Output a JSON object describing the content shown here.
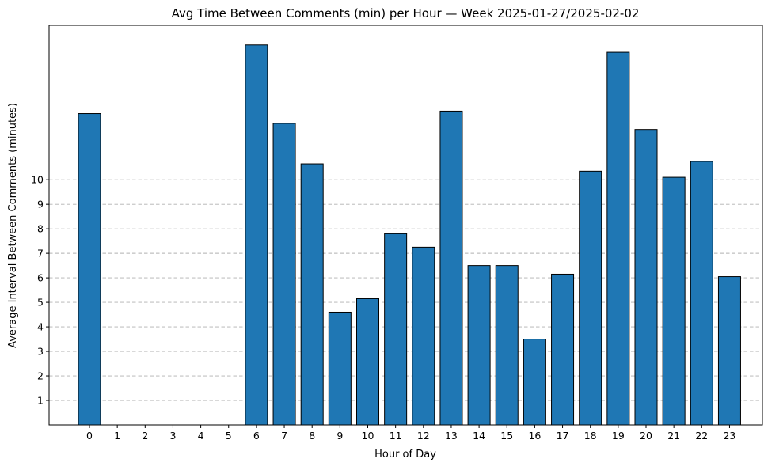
{
  "chart_data": {
    "type": "bar",
    "title": "Avg Time Between Comments (min) per Hour — Week 2025-01-27/2025-02-02",
    "xlabel": "Hour of Day",
    "ylabel": "Average Interval Between Comments (minutes)",
    "categories": [
      "0",
      "1",
      "2",
      "3",
      "4",
      "5",
      "6",
      "7",
      "8",
      "9",
      "10",
      "11",
      "12",
      "13",
      "14",
      "15",
      "16",
      "17",
      "18",
      "19",
      "20",
      "21",
      "22",
      "23"
    ],
    "values": [
      12.7,
      0,
      0,
      0,
      0,
      0,
      15.5,
      12.3,
      10.65,
      4.6,
      5.15,
      7.8,
      7.25,
      12.8,
      6.5,
      6.5,
      3.5,
      6.15,
      10.35,
      15.2,
      12.05,
      10.1,
      10.75,
      6.05
    ],
    "y_ticks": [
      "1",
      "2",
      "3",
      "4",
      "5",
      "6",
      "7",
      "8",
      "9",
      "10"
    ],
    "ylim": [
      0,
      16.3
    ],
    "grid": "y-axis dashed",
    "bar_color": "#1f77b4",
    "edge_color": "#000000"
  }
}
